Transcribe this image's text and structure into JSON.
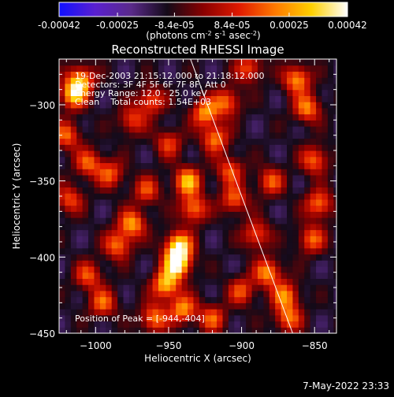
{
  "chart_data": {
    "type": "heatmap",
    "title": "Reconstructed RHESSI Image",
    "xlabel": "Heliocentric X (arcsec)",
    "ylabel": "Heliocentric Y (arcsec)",
    "xlim": [
      -1025,
      -835
    ],
    "ylim": [
      -450,
      -270
    ],
    "x_ticks": [
      -1000,
      -950,
      -900,
      -850
    ],
    "x_tick_labels": [
      "−1000",
      "−950",
      "−900",
      "−850"
    ],
    "y_ticks": [
      -450,
      -400,
      -350,
      -300
    ],
    "y_tick_labels": [
      "−450",
      "−400",
      "−350",
      "−300"
    ],
    "colorbar": {
      "range": [
        -0.00042,
        0.00042
      ],
      "ticks": [
        -0.00042,
        -0.00025,
        -8.4e-05,
        8.4e-05,
        0.00025,
        0.00042
      ],
      "tick_labels": [
        "-0.00042",
        "-0.00025",
        "-8.4e-05",
        "8.4e-05",
        "0.00025",
        "0.00042"
      ],
      "units_parts": [
        "(photons cm",
        "-2",
        " s",
        "-1",
        " asec",
        "-2",
        ")"
      ],
      "colors": [
        "#1010ff",
        "#5a20d0",
        "#5a2a8a",
        "#140a18",
        "#8a0000",
        "#e01a00",
        "#ff7a00",
        "#ffd000",
        "#ffffff"
      ]
    },
    "info_lines": [
      "19-Dec-2003 21:15:12.000 to 21:18:12.000",
      "Detectors: 3F 4F 5F 6F 7F 8F, Att 0",
      "Energy Range: 12.0 - 25.0 keV",
      "Clean    Total counts: 1.54E+03"
    ],
    "peak_label": "Position of Peak = [-944,-404]",
    "peak": [
      -944,
      -404
    ],
    "limb_line": [
      [
        -935,
        -270
      ],
      [
        -865,
        -450
      ]
    ],
    "sources": [
      {
        "x": -944,
        "y": -404,
        "v": 0.00042
      },
      {
        "x": -943,
        "y": -392,
        "v": 0.00034
      },
      {
        "x": -952,
        "y": -418,
        "v": 0.0003
      },
      {
        "x": -940,
        "y": -434,
        "v": 0.00024
      },
      {
        "x": -960,
        "y": -440,
        "v": 0.00022
      },
      {
        "x": -937,
        "y": -350,
        "v": 0.00029
      },
      {
        "x": -933,
        "y": -368,
        "v": 0.00022
      },
      {
        "x": -975,
        "y": -378,
        "v": 0.00025
      },
      {
        "x": -985,
        "y": -392,
        "v": 0.0002
      },
      {
        "x": -995,
        "y": -430,
        "v": 0.00018
      },
      {
        "x": -1005,
        "y": -412,
        "v": 0.00016
      },
      {
        "x": -1015,
        "y": -293,
        "v": 0.0003
      },
      {
        "x": -1010,
        "y": -283,
        "v": 0.00024
      },
      {
        "x": -1020,
        "y": -320,
        "v": 0.00018
      },
      {
        "x": -1005,
        "y": -338,
        "v": 0.00017
      },
      {
        "x": -990,
        "y": -345,
        "v": 0.00016
      },
      {
        "x": -975,
        "y": -310,
        "v": 0.00014
      },
      {
        "x": -962,
        "y": -297,
        "v": 0.00017
      },
      {
        "x": -925,
        "y": -305,
        "v": 0.00024
      },
      {
        "x": -918,
        "y": -322,
        "v": 0.00021
      },
      {
        "x": -910,
        "y": -298,
        "v": 0.00019
      },
      {
        "x": -908,
        "y": -343,
        "v": 0.00016
      },
      {
        "x": -905,
        "y": -362,
        "v": 0.00018
      },
      {
        "x": -890,
        "y": -385,
        "v": 0.00017
      },
      {
        "x": -882,
        "y": -410,
        "v": 0.00024
      },
      {
        "x": -870,
        "y": -425,
        "v": 0.00021
      },
      {
        "x": -868,
        "y": -440,
        "v": 0.00019
      },
      {
        "x": -862,
        "y": -283,
        "v": 0.00025
      },
      {
        "x": -855,
        "y": -302,
        "v": 0.00022
      },
      {
        "x": -850,
        "y": -336,
        "v": 0.00019
      },
      {
        "x": -847,
        "y": -365,
        "v": 0.00021
      },
      {
        "x": -852,
        "y": -388,
        "v": 0.00018
      },
      {
        "x": -880,
        "y": -350,
        "v": 0.00016
      },
      {
        "x": -920,
        "y": -440,
        "v": 0.00016
      },
      {
        "x": -900,
        "y": -422,
        "v": 0.00015
      },
      {
        "x": -965,
        "y": -356,
        "v": 0.00014
      },
      {
        "x": -950,
        "y": -325,
        "v": 0.00013
      },
      {
        "x": -1018,
        "y": -362,
        "v": 0.00015
      },
      {
        "x": -895,
        "y": -276,
        "v": 0.00016
      }
    ]
  },
  "footer": {
    "timestamp": "7-May-2022 23:33"
  }
}
